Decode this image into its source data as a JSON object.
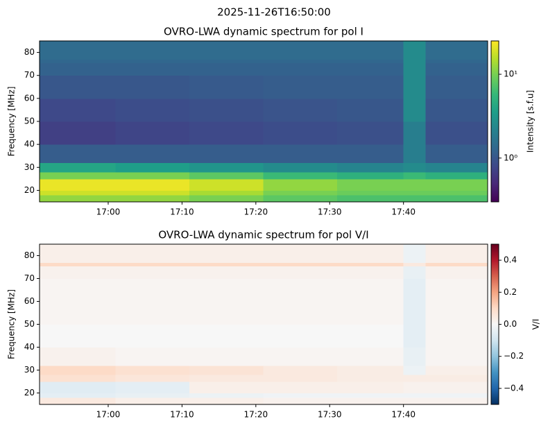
{
  "chart_data": [
    {
      "type": "heatmap",
      "suptitle": "2025-11-26T16:50:00",
      "title": "OVRO-LWA dynamic spectrum for pol I",
      "ylabel": "Frequency [MHz]",
      "colorbar_label": "Intensity [s.f.u]",
      "xlim": [
        1010.7,
        1071.4
      ],
      "xticks": [
        {
          "value": 1020,
          "label": "17:00"
        },
        {
          "value": 1030,
          "label": "17:10"
        },
        {
          "value": 1040,
          "label": "17:20"
        },
        {
          "value": 1050,
          "label": "17:30"
        },
        {
          "value": 1060,
          "label": "17:40"
        }
      ],
      "ylim": [
        15,
        85
      ],
      "yticks": [
        20,
        30,
        40,
        50,
        60,
        70,
        80
      ],
      "xbins": [
        1010.7,
        1021,
        1031,
        1041,
        1051,
        1060,
        1063,
        1071.4
      ],
      "ybins": [
        15,
        18,
        20,
        25,
        28,
        32,
        40,
        50,
        60,
        70,
        75.5,
        77,
        85
      ],
      "z": [
        [
          12,
          12,
          10,
          8,
          7,
          7,
          7
        ],
        [
          18,
          18,
          14,
          10,
          9,
          9,
          9
        ],
        [
          22,
          22,
          18,
          12,
          10,
          10,
          10
        ],
        [
          10,
          10,
          8,
          6,
          5,
          6,
          5
        ],
        [
          4,
          3.5,
          3,
          2.5,
          2.2,
          2.5,
          2.2
        ],
        [
          1.1,
          1.1,
          1.1,
          1.1,
          1.1,
          2,
          1.1
        ],
        [
          0.7,
          0.75,
          0.8,
          0.85,
          0.9,
          2,
          0.9
        ],
        [
          0.8,
          0.85,
          0.9,
          0.95,
          1,
          2.5,
          1
        ],
        [
          1,
          1,
          1.05,
          1.1,
          1.1,
          2.5,
          1.1
        ],
        [
          1.2,
          1.2,
          1.2,
          1.2,
          1.2,
          2.5,
          1.2
        ],
        [
          1.3,
          1.3,
          1.3,
          1.3,
          1.3,
          2.5,
          1.3
        ],
        [
          1.4,
          1.4,
          1.4,
          1.4,
          1.4,
          2.5,
          1.4
        ]
      ],
      "color_scale": "log",
      "clim": [
        0.3,
        25
      ],
      "cticks": [
        {
          "value": 1,
          "label": "10⁰"
        },
        {
          "value": 10,
          "label": "10¹"
        }
      ],
      "colormap": [
        "#440154",
        "#482878",
        "#3e4989",
        "#31688e",
        "#26828e",
        "#1f9e89",
        "#35b779",
        "#6ece58",
        "#b5de2b",
        "#fde725"
      ]
    },
    {
      "type": "heatmap",
      "title": "OVRO-LWA dynamic spectrum for pol V/I",
      "ylabel": "Frequency [MHz]",
      "colorbar_label": "V/I",
      "xlim": [
        1010.7,
        1071.4
      ],
      "xticks": [
        {
          "value": 1020,
          "label": "17:00"
        },
        {
          "value": 1030,
          "label": "17:10"
        },
        {
          "value": 1040,
          "label": "17:20"
        },
        {
          "value": 1050,
          "label": "17:30"
        },
        {
          "value": 1060,
          "label": "17:40"
        }
      ],
      "ylim": [
        15,
        85
      ],
      "yticks": [
        20,
        30,
        40,
        50,
        60,
        70,
        80
      ],
      "xbins": [
        1010.7,
        1021,
        1031,
        1041,
        1051,
        1060,
        1063,
        1071.4
      ],
      "ybins": [
        15,
        18,
        20,
        25,
        28,
        32,
        40,
        50,
        60,
        70,
        75.5,
        77,
        85
      ],
      "z": [
        [
          0.05,
          0.03,
          0.03,
          0.02,
          0.02,
          0.02,
          0.02
        ],
        [
          -0.05,
          -0.04,
          -0.03,
          -0.02,
          -0.02,
          -0.02,
          -0.02
        ],
        [
          -0.06,
          -0.05,
          0.03,
          0.03,
          0.03,
          0.02,
          0.02
        ],
        [
          0.08,
          0.06,
          0.05,
          0.05,
          0.04,
          0.04,
          0.04
        ],
        [
          0.1,
          0.08,
          0.07,
          0.05,
          0.04,
          -0.03,
          0.03
        ],
        [
          0.02,
          0.01,
          0.01,
          0.01,
          0.01,
          -0.04,
          0.01
        ],
        [
          0,
          0,
          0,
          0,
          0,
          -0.05,
          0.01
        ],
        [
          0.01,
          0.01,
          0.01,
          0.01,
          0.01,
          -0.05,
          0.01
        ],
        [
          0.01,
          0.01,
          0.01,
          0.01,
          0.01,
          -0.05,
          0.01
        ],
        [
          0.02,
          0.02,
          0.02,
          0.02,
          0.02,
          -0.04,
          0.02
        ],
        [
          0.1,
          0.1,
          0.1,
          0.1,
          0.1,
          0.05,
          0.1
        ],
        [
          0.03,
          0.03,
          0.03,
          0.03,
          0.03,
          -0.03,
          0.03
        ]
      ],
      "color_scale": "linear",
      "clim": [
        -0.5,
        0.5
      ],
      "cticks": [
        {
          "value": -0.4,
          "label": "−0.4"
        },
        {
          "value": -0.2,
          "label": "−0.2"
        },
        {
          "value": 0,
          "label": "0.0"
        },
        {
          "value": 0.2,
          "label": "0.2"
        },
        {
          "value": 0.4,
          "label": "0.4"
        }
      ],
      "colormap": [
        "#053061",
        "#2166ac",
        "#4393c3",
        "#92c5de",
        "#d1e5f0",
        "#f7f7f7",
        "#fddbc7",
        "#f4a582",
        "#d6604d",
        "#b2182b",
        "#67001f"
      ]
    }
  ]
}
